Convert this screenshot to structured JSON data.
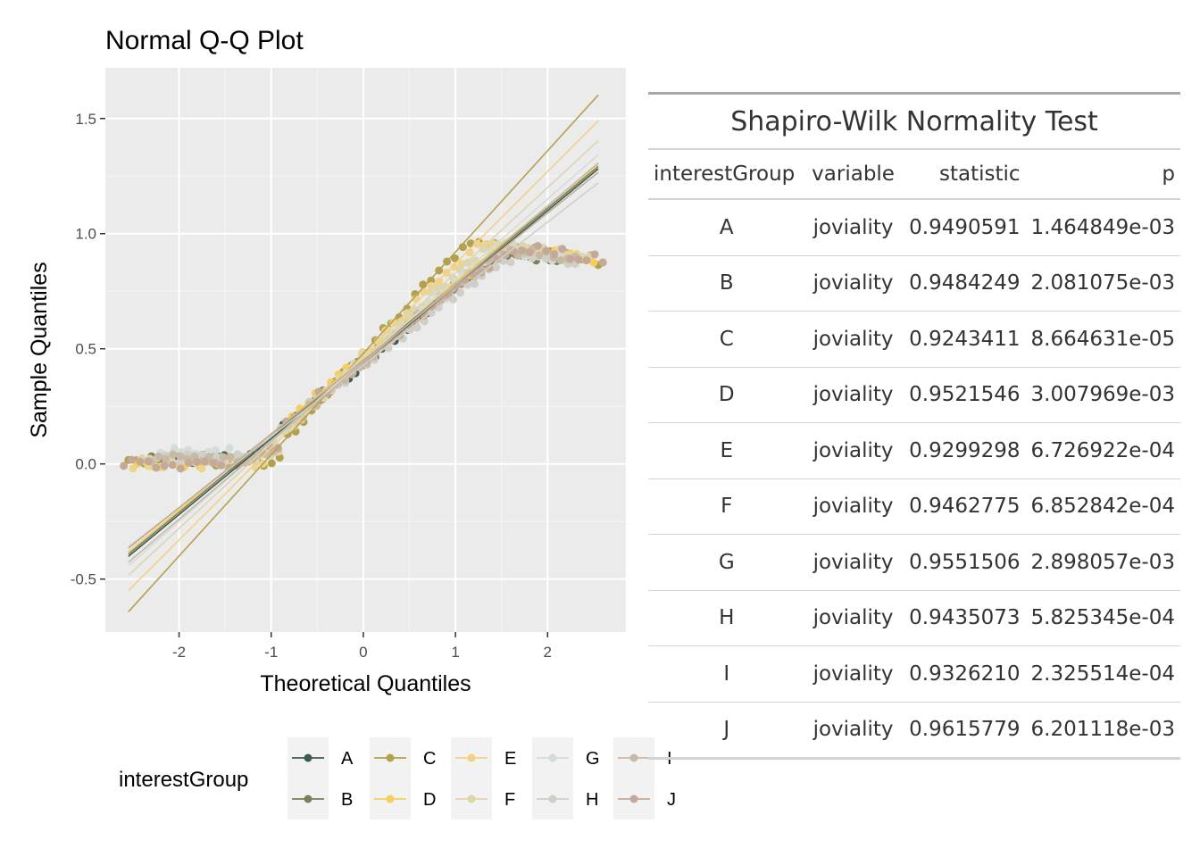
{
  "chart_data": {
    "type": "scatter",
    "title": "Normal Q-Q Plot",
    "xlabel": "Theoretical Quantiles",
    "ylabel": "Sample Quantiles",
    "xlim": [
      -2.8,
      2.85
    ],
    "ylim": [
      -0.73,
      1.72
    ],
    "x_ticks": [
      -2,
      -1,
      0,
      1,
      2
    ],
    "y_ticks": [
      -0.5,
      0.0,
      0.5,
      1.0,
      1.5
    ],
    "x_tick_labels": [
      "-2",
      "-1",
      "0",
      "1",
      "2"
    ],
    "y_tick_labels": [
      "-0.5",
      "0.0",
      "0.5",
      "1.0",
      "1.5"
    ],
    "grid": true,
    "legend": {
      "title": "interestGroup",
      "position": "bottom"
    },
    "series": [
      {
        "name": "A",
        "color": "#3e5b4b",
        "line": {
          "intercept": 0.44,
          "slope": 0.33
        },
        "xrange": [
          -2.15,
          2.05
        ],
        "floor": 0.02,
        "cap": 0.97
      },
      {
        "name": "B",
        "color": "#7a8058",
        "line": {
          "intercept": 0.45,
          "slope": 0.33
        },
        "xrange": [
          -2.3,
          2.1
        ],
        "floor": 0.02,
        "cap": 0.96
      },
      {
        "name": "C",
        "color": "#b3a14e",
        "line": {
          "intercept": 0.48,
          "slope": 0.44
        },
        "xrange": [
          -2.55,
          2.55
        ],
        "floor": 0.0,
        "cap": 0.98
      },
      {
        "name": "D",
        "color": "#f5cf5a",
        "line": {
          "intercept": 0.46,
          "slope": 0.33
        },
        "xrange": [
          -2.45,
          2.5
        ],
        "floor": 0.0,
        "cap": 0.98
      },
      {
        "name": "E",
        "color": "#f0d38a",
        "line": {
          "intercept": 0.47,
          "slope": 0.4
        },
        "xrange": [
          -2.5,
          2.4
        ],
        "floor": 0.0,
        "cap": 0.98
      },
      {
        "name": "F",
        "color": "#ddd5b0",
        "line": {
          "intercept": 0.46,
          "slope": 0.37
        },
        "xrange": [
          -2.4,
          2.45
        ],
        "floor": 0.01,
        "cap": 0.99
      },
      {
        "name": "G",
        "color": "#d3dcd8",
        "line": {
          "intercept": 0.45,
          "slope": 0.35
        },
        "xrange": [
          -2.2,
          2.2
        ],
        "floor": 0.05,
        "cap": 0.97
      },
      {
        "name": "H",
        "color": "#cfcfc8",
        "line": {
          "intercept": 0.43,
          "slope": 0.31
        },
        "xrange": [
          -2.3,
          2.3
        ],
        "floor": 0.03,
        "cap": 0.96
      },
      {
        "name": "I",
        "color": "#c8b9a5",
        "line": {
          "intercept": 0.44,
          "slope": 0.34
        },
        "xrange": [
          -2.3,
          2.3
        ],
        "floor": 0.02,
        "cap": 0.97
      },
      {
        "name": "J",
        "color": "#c4aa96",
        "line": {
          "intercept": 0.45,
          "slope": 0.32
        },
        "xrange": [
          -2.6,
          2.6
        ],
        "floor": 0.0,
        "cap": 0.99
      }
    ]
  },
  "table": {
    "title": "Shapiro-Wilk Normality Test",
    "columns": [
      "interestGroup",
      "variable",
      "statistic",
      "p"
    ],
    "rows": [
      {
        "group": "A",
        "variable": "joviality",
        "statistic": "0.9490591",
        "p": "1.464849e-03"
      },
      {
        "group": "B",
        "variable": "joviality",
        "statistic": "0.9484249",
        "p": "2.081075e-03"
      },
      {
        "group": "C",
        "variable": "joviality",
        "statistic": "0.9243411",
        "p": "8.664631e-05"
      },
      {
        "group": "D",
        "variable": "joviality",
        "statistic": "0.9521546",
        "p": "3.007969e-03"
      },
      {
        "group": "E",
        "variable": "joviality",
        "statistic": "0.9299298",
        "p": "6.726922e-04"
      },
      {
        "group": "F",
        "variable": "joviality",
        "statistic": "0.9462775",
        "p": "6.852842e-04"
      },
      {
        "group": "G",
        "variable": "joviality",
        "statistic": "0.9551506",
        "p": "2.898057e-03"
      },
      {
        "group": "H",
        "variable": "joviality",
        "statistic": "0.9435073",
        "p": "5.825345e-04"
      },
      {
        "group": "I",
        "variable": "joviality",
        "statistic": "0.9326210",
        "p": "2.325514e-04"
      },
      {
        "group": "J",
        "variable": "joviality",
        "statistic": "0.9615779",
        "p": "6.201118e-03"
      }
    ]
  }
}
